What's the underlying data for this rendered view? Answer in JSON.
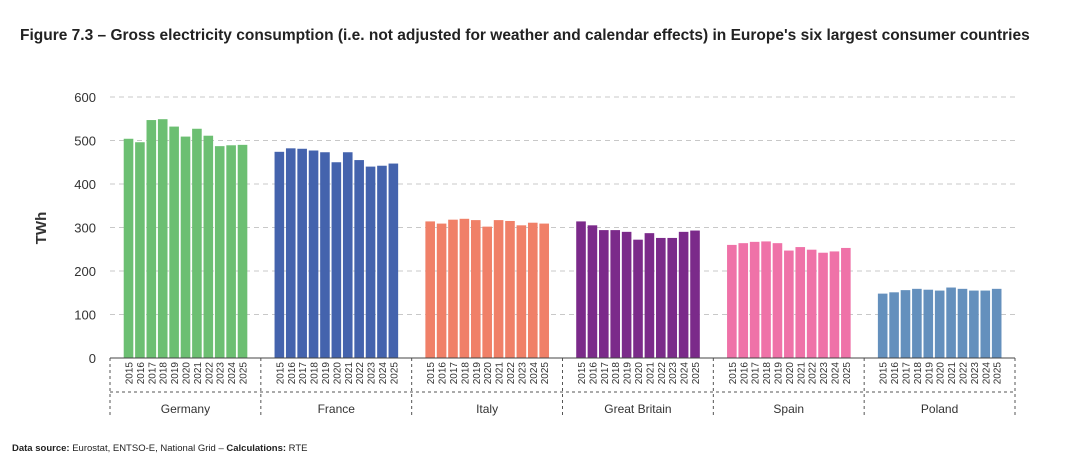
{
  "title": "Figure 7.3 – Gross electricity consumption (i.e. not adjusted for weather and calendar effects) in Europe's six largest consumer countries",
  "source": {
    "label1": "Data source:",
    "text1": " Eurostat, ENTSO-E, National Grid – ",
    "label2": "Calculations:",
    "text2": " RTE"
  },
  "chart_data": {
    "type": "bar",
    "ylabel": "TWh",
    "ylim": [
      0,
      600
    ],
    "yticks": [
      "0",
      "100",
      "200",
      "300",
      "400",
      "500",
      "600"
    ],
    "grid": true,
    "years": [
      "2015",
      "2016",
      "2017",
      "2018",
      "2019",
      "2020",
      "2021",
      "2022",
      "2023",
      "2024",
      "2025"
    ],
    "series": [
      {
        "name": "Germany",
        "color": "#6cbf72",
        "values": [
          504,
          496,
          547,
          549,
          532,
          509,
          527,
          511,
          487,
          489,
          490
        ]
      },
      {
        "name": "France",
        "color": "#4463ad",
        "values": [
          474,
          482,
          481,
          477,
          473,
          450,
          473,
          455,
          440,
          442,
          447
        ]
      },
      {
        "name": "Italy",
        "color": "#f08068",
        "values": [
          314,
          309,
          318,
          320,
          317,
          302,
          317,
          315,
          305,
          311,
          309
        ]
      },
      {
        "name": "Great Britain",
        "color": "#7b2a8a",
        "values": [
          314,
          305,
          294,
          294,
          290,
          272,
          287,
          276,
          276,
          290,
          293
        ]
      },
      {
        "name": "Spain",
        "color": "#ef72a8",
        "values": [
          260,
          264,
          267,
          268,
          264,
          247,
          255,
          249,
          242,
          245,
          253
        ]
      },
      {
        "name": "Poland",
        "color": "#6490bd",
        "values": [
          148,
          151,
          156,
          159,
          157,
          155,
          162,
          159,
          155,
          155,
          159
        ]
      }
    ]
  }
}
